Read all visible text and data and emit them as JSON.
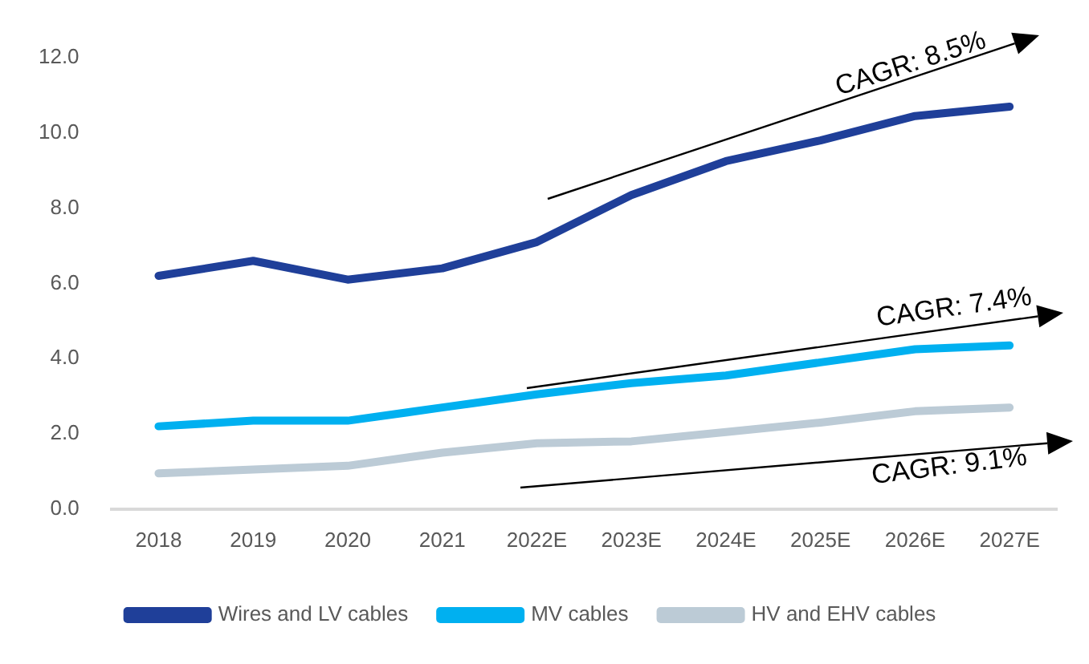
{
  "chart_data": {
    "type": "line",
    "categories": [
      "2018",
      "2019",
      "2020",
      "2021",
      "2022E",
      "2023E",
      "2024E",
      "2025E",
      "2026E",
      "2027E"
    ],
    "series": [
      {
        "name": "Wires and LV cables",
        "color": "#1f3f99",
        "values": [
          6.2,
          6.6,
          6.1,
          6.4,
          7.1,
          8.35,
          9.25,
          9.8,
          10.45,
          10.7
        ]
      },
      {
        "name": "MV cables",
        "color": "#00b0f0",
        "values": [
          2.2,
          2.35,
          2.35,
          2.7,
          3.05,
          3.35,
          3.55,
          3.9,
          4.25,
          4.35
        ]
      },
      {
        "name": "HV and EHV cables",
        "color": "#bccbd6",
        "values": [
          0.95,
          1.05,
          1.15,
          1.5,
          1.75,
          1.8,
          2.05,
          2.3,
          2.6,
          2.7
        ]
      }
    ],
    "ylim": [
      0,
      12
    ],
    "yticks": [
      {
        "value": 0,
        "label": "0.0"
      },
      {
        "value": 2,
        "label": "2.0"
      },
      {
        "value": 4,
        "label": "4.0"
      },
      {
        "value": 6,
        "label": "6.0"
      },
      {
        "value": 8,
        "label": "8.0"
      },
      {
        "value": 10,
        "label": "10.0"
      },
      {
        "value": 12,
        "label": "12.0"
      }
    ],
    "annotations": [
      "CAGR: 8.5%",
      "CAGR: 7.4%",
      "CAGR: 9.1%"
    ],
    "grid": false,
    "legend": "bottom",
    "marker": "none",
    "line_style": "solid"
  }
}
